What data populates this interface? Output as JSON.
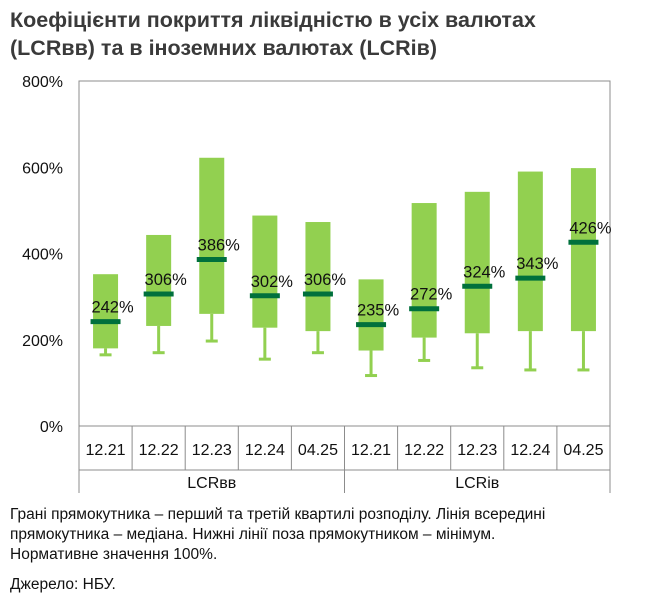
{
  "title_line1": "Коефіцієнти покриття ліквідністю в усіх валютах",
  "title_line2": "(LCRвв) та в іноземних валютах (LCRів)",
  "note_line1": "Грані прямокутника – перший та третій квартилі розподілу. Лінія всередині",
  "note_line2": "прямокутника – медіана. Нижні лінії поза прямокутником – мінімум.",
  "note_line3": "Нормативне значення 100%.",
  "source": "Джерело: НБУ.",
  "colors": {
    "box": "#92d050",
    "median": "#00703c",
    "axis": "#8c8c8c"
  },
  "chart_data": {
    "type": "box",
    "ylim": [
      0,
      800
    ],
    "yticks": [
      0,
      200,
      400,
      600,
      800
    ],
    "ytick_labels": [
      "0%",
      "200%",
      "400%",
      "600%",
      "800%"
    ],
    "groups": [
      {
        "name": "LCRвв",
        "categories": [
          "12.21",
          "12.22",
          "12.23",
          "12.24",
          "04.25"
        ]
      },
      {
        "name": "LCRів",
        "categories": [
          "12.21",
          "12.22",
          "12.23",
          "12.24",
          "04.25"
        ]
      }
    ],
    "series": [
      {
        "group": "LCRвв",
        "category": "12.21",
        "min": 165,
        "q1": 180,
        "median": 242,
        "q3": 352,
        "median_label": "242%"
      },
      {
        "group": "LCRвв",
        "category": "12.22",
        "min": 170,
        "q1": 232,
        "median": 306,
        "q3": 443,
        "median_label": "306%"
      },
      {
        "group": "LCRвв",
        "category": "12.23",
        "min": 197,
        "q1": 260,
        "median": 386,
        "q3": 622,
        "median_label": "386%"
      },
      {
        "group": "LCRвв",
        "category": "12.24",
        "min": 155,
        "q1": 228,
        "median": 302,
        "q3": 488,
        "median_label": "302%"
      },
      {
        "group": "LCRвв",
        "category": "04.25",
        "min": 170,
        "q1": 220,
        "median": 306,
        "q3": 473,
        "median_label": "306%"
      },
      {
        "group": "LCRів",
        "category": "12.21",
        "min": 117,
        "q1": 175,
        "median": 235,
        "q3": 340,
        "median_label": "235%"
      },
      {
        "group": "LCRів",
        "category": "12.22",
        "min": 152,
        "q1": 205,
        "median": 272,
        "q3": 517,
        "median_label": "272%"
      },
      {
        "group": "LCRів",
        "category": "12.23",
        "min": 135,
        "q1": 215,
        "median": 324,
        "q3": 543,
        "median_label": "324%"
      },
      {
        "group": "LCRів",
        "category": "12.24",
        "min": 130,
        "q1": 220,
        "median": 343,
        "q3": 590,
        "median_label": "343%"
      },
      {
        "group": "LCRів",
        "category": "04.25",
        "min": 130,
        "q1": 220,
        "median": 426,
        "q3": 598,
        "median_label": "426%"
      }
    ]
  }
}
